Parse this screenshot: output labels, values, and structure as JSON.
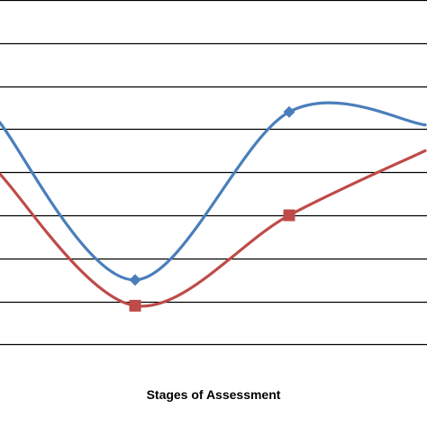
{
  "chart_data": {
    "type": "line",
    "xlabel": "Stages of Assessment",
    "ylabel": "",
    "grid": true,
    "smooth": true,
    "x": [
      0,
      1,
      2,
      3
    ],
    "series": [
      {
        "color": "#4a7ebb",
        "marker": "diamond",
        "values": [
          72,
          35,
          74,
          71
        ],
        "visible_markers": [
          1,
          2
        ]
      },
      {
        "color": "#be4b48",
        "marker": "square",
        "values": [
          60,
          29,
          50,
          65
        ],
        "visible_markers": [
          1,
          2
        ]
      }
    ]
  }
}
